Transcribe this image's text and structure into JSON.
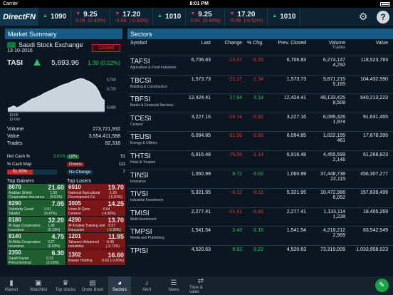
{
  "status": {
    "carrier": "Carrier",
    "time": "8:01 PM"
  },
  "app": {
    "logo": "DirectFN"
  },
  "ticker": [
    {
      "price": "1090",
      "dir": "up",
      "change": "",
      "pct": ""
    },
    {
      "price": "9.25",
      "dir": "down",
      "change": "0.04",
      "pct": "(0.43%)"
    },
    {
      "price": "17.20",
      "dir": "down",
      "change": "-0.09",
      "pct": "(-0.52%)"
    },
    {
      "price": "1010",
      "dir": "up",
      "change": "",
      "pct": ""
    },
    {
      "price": "9.25",
      "dir": "down",
      "change": "0.04",
      "pct": "(0.43%)"
    },
    {
      "price": "17.20",
      "dir": "down",
      "change": "-0.09",
      "pct": "(-0.52%)"
    },
    {
      "price": "1010",
      "dir": "up",
      "change": "",
      "pct": ""
    }
  ],
  "market_summary": {
    "title": "Market Summary",
    "date": "13-10-2016",
    "exchange": "Saudi Stock Exchange",
    "status": "Closed",
    "index_name": "TASI",
    "index_value": "5,693.96",
    "index_change": "1.30 (0.02%)",
    "chart_y_labels": [
      "5,740",
      "5,720",
      "5,680"
    ],
    "chart_x_labels": [
      "10:00",
      "13 Oct"
    ],
    "chart_series": [
      5678,
      5680,
      5683,
      5679,
      5682,
      5686,
      5690,
      5694,
      5698,
      5700,
      5703,
      5706,
      5710,
      5713,
      5716,
      5719,
      5722,
      5725,
      5728,
      5730,
      5732,
      5735,
      5738,
      5740,
      5742,
      5741,
      5738,
      5735,
      5731,
      5725,
      5715,
      5700,
      5694
    ],
    "volume_label": "Volume",
    "volume": "273,721,932",
    "value_label": "Value",
    "value": "3,554,411,588",
    "trades_label": "Trades",
    "trades": "92,318",
    "net_cash_label": "Net Cash %",
    "net_cash": "2.01%",
    "cash_map_label": "% Cash Map",
    "cash_map_pct": "51.00%",
    "cash_map_fraction": 0.51,
    "ups_label": "UPs",
    "ups": "51",
    "downs_label": "Downs",
    "downs": "111",
    "nochange_label": "No Change",
    "nochange": "7"
  },
  "gainers_label": "Top Gainers",
  "losers_label": "Top Losers",
  "gainers": [
    {
      "code": "8070",
      "name": "Arabian Shield Cooperative Insurance",
      "price": "21.60",
      "change": "1.93",
      "pct": "(9.81%)"
    },
    {
      "code": "8290",
      "name": "Solidarity Saudi Takaful",
      "price": "7.05",
      "change": "0.61",
      "pct": "(9.47%)"
    },
    {
      "code": "8180",
      "name": "Al Sagr Cooperative Insurance",
      "price": "32.20",
      "change": "1.86",
      "pct": "(6.13%)"
    },
    {
      "code": "8140",
      "name": "Al Ahlia Cooperative Insurance",
      "price": "4.75",
      "change": "0.27",
      "pct": "(6.03%)"
    },
    {
      "code": "2350",
      "name": "Saudi Kayan Petrochemical",
      "price": "6.30",
      "change": "0.33",
      "pct": "(5.53%)"
    }
  ],
  "losers": [
    {
      "code": "6010",
      "name": "National Agricultural Development Co.",
      "price": "19.70",
      "change": "-1.26",
      "pct": "(-6.01%)"
    },
    {
      "code": "3005",
      "name": "Umm Al Qura Cement",
      "price": "14.25",
      "change": "-0.64",
      "pct": "(-4.30%)"
    },
    {
      "code": "4290",
      "name": "Al Khaleej Training and Education",
      "price": "13.70",
      "change": "-0.57",
      "pct": "(-3.99%)"
    },
    {
      "code": "1201",
      "name": "Takween Advanced Industries",
      "price": "11.95",
      "change": "-0.46",
      "pct": "(-3.71%)"
    },
    {
      "code": "1302",
      "name": "Bawan Holding",
      "price": "16.60",
      "change": "-0.62",
      "pct": "(-3.60%)"
    }
  ],
  "sectors": {
    "title": "Sectors",
    "headers": {
      "symbol": "Symbol",
      "last": "Last",
      "change": "Change",
      "pct": "% Chg.",
      "prev": "Prev. Closed",
      "volume": "Volume",
      "trades": "Trades",
      "value": "Value"
    },
    "rows": [
      {
        "sym": "TAFSI",
        "desc": "Agriculture & Food Industries",
        "last": "6,706.83",
        "change": "-23.37",
        "pct": "-0.35",
        "dir": "down",
        "prev": "6,706.83",
        "volume": "6,274,147",
        "trades": "4,292",
        "value": "118,523,783"
      },
      {
        "sym": "TBCSI",
        "desc": "Building & Construction",
        "last": "1,573.73",
        "change": "-21.37",
        "pct": "-1.34",
        "dir": "down",
        "prev": "1,573.73",
        "volume": "9,871,215",
        "trades": "5,165",
        "value": "104,432,590"
      },
      {
        "sym": "TBFSI",
        "desc": "Banks & Financial Services",
        "last": "12,424.41",
        "change": "17.64",
        "pct": "0.14",
        "dir": "up",
        "prev": "12,424.41",
        "volume": "48,133,425",
        "trades": "8,508",
        "value": "640,213,223"
      },
      {
        "sym": "TCESI",
        "desc": "Cement",
        "last": "3,227.16",
        "change": "-20.14",
        "pct": "-0.62",
        "dir": "down",
        "prev": "3,227.16",
        "volume": "6,095,326",
        "trades": "1,974",
        "value": "91,631,465"
      },
      {
        "sym": "TEUSI",
        "desc": "Energy & Utilities",
        "last": "6,094.85",
        "change": "-51.06",
        "pct": "-0.83",
        "dir": "down",
        "prev": "6,094.85",
        "volume": "1,022,155",
        "trades": "461",
        "value": "17,678,395"
      },
      {
        "sym": "THTSI",
        "desc": "Hotel & Tourism",
        "last": "6,916.48",
        "change": "-79.58",
        "pct": "-1.14",
        "dir": "down",
        "prev": "6,916.48",
        "volume": "4,455,599",
        "trades": "2,146",
        "value": "61,268,823"
      },
      {
        "sym": "TINSI",
        "desc": "Insurance",
        "last": "1,060.99",
        "change": "9.72",
        "pct": "0.92",
        "dir": "up",
        "prev": "1,060.99",
        "volume": "37,448,738",
        "trades": "22,115",
        "value": "456,307,277"
      },
      {
        "sym": "TIVSI",
        "desc": "Industrial Investment",
        "last": "5,321.95",
        "change": "-6.12",
        "pct": "-0.11",
        "dir": "down",
        "prev": "5,321.95",
        "volume": "10,472,986",
        "trades": "6,052",
        "value": "157,639,499"
      },
      {
        "sym": "TMISI",
        "desc": "Multi-Investment",
        "last": "2,277.41",
        "change": "-21.41",
        "pct": "-0.93",
        "dir": "down",
        "prev": "2,277.41",
        "volume": "1,133,114",
        "trades": "1,228",
        "value": "18,405,269"
      },
      {
        "sym": "TMPSI",
        "desc": "Media and Publishing",
        "last": "1,541.54",
        "change": "2.43",
        "pct": "0.16",
        "dir": "up",
        "prev": "1,541.54",
        "volume": "4,218,212",
        "trades": "2,969",
        "value": "63,542,549"
      },
      {
        "sym": "TPISI",
        "desc": "",
        "last": "4,520.63",
        "change": "9.93",
        "pct": "0.22",
        "dir": "up",
        "prev": "4,520.63",
        "volume": "73,319,009",
        "trades": "",
        "value": "1,033,958,023"
      }
    ]
  },
  "tabs": [
    {
      "label": "Market",
      "icon": "bar-chart-icon",
      "glyph": "▮"
    },
    {
      "label": "Watchlist",
      "icon": "briefcase-icon",
      "glyph": "▣"
    },
    {
      "label": "Top stocks",
      "icon": "trophy-icon",
      "glyph": "♛"
    },
    {
      "label": "Order Book",
      "icon": "book-icon",
      "glyph": "▤"
    },
    {
      "label": "Sectors",
      "icon": "pie-chart-icon",
      "glyph": "◕"
    },
    {
      "label": "Alert",
      "icon": "bell-icon",
      "glyph": "♪"
    },
    {
      "label": "News",
      "icon": "news-icon",
      "glyph": "☰"
    },
    {
      "label": "Time & sales",
      "icon": "handshake-icon",
      "glyph": "⇄"
    }
  ],
  "active_tab": "Sectors"
}
